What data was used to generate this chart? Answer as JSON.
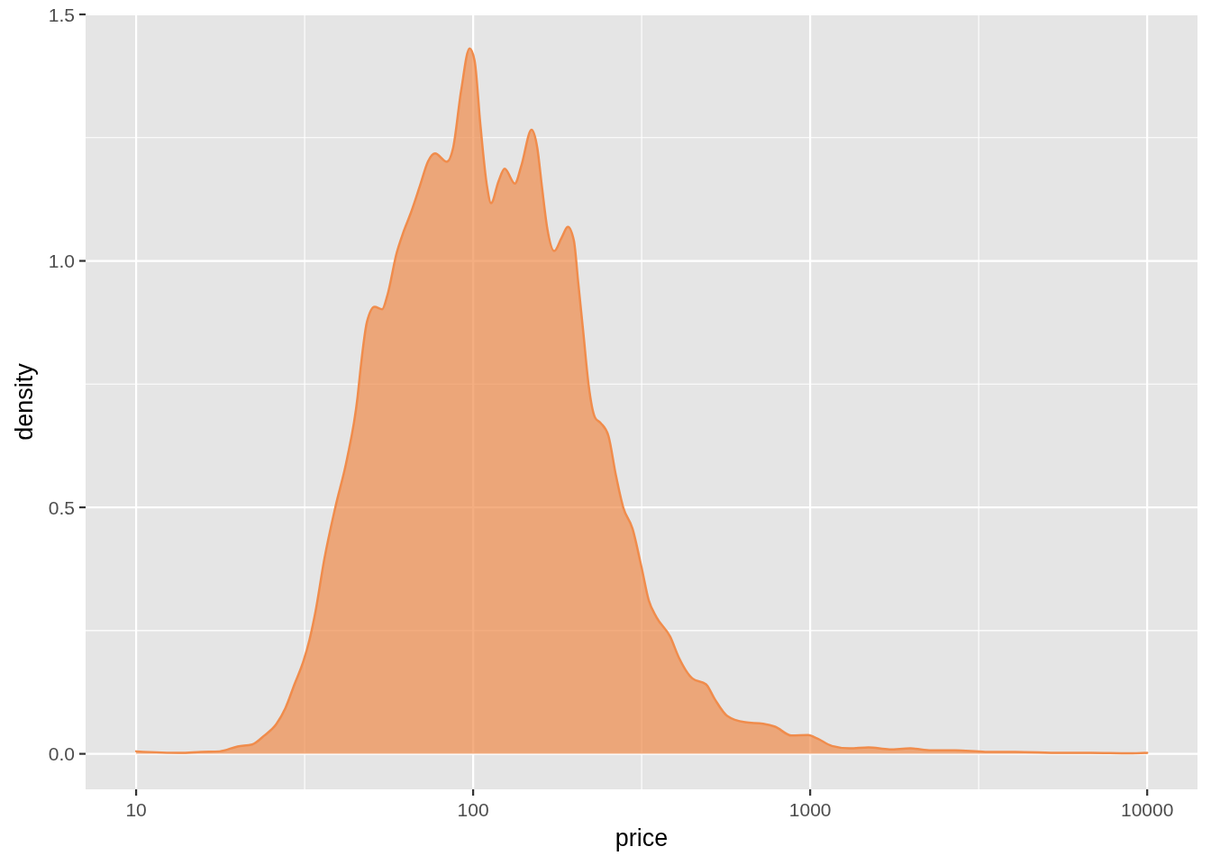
{
  "chart_data": {
    "type": "area",
    "xlabel": "price",
    "ylabel": "density",
    "log": "x",
    "grid": true,
    "xlim": [
      7.08,
      14100
    ],
    "ylim": [
      -0.072,
      1.5
    ],
    "xticks": [
      10,
      {
        "value": 31.62,
        "label": null
      },
      100,
      {
        "value": 316.2,
        "label": null
      },
      1000,
      {
        "value": 3162,
        "label": null
      },
      10000
    ],
    "yticks": [
      {
        "value": 0,
        "label": "0.0"
      },
      {
        "value": 0.25,
        "label": null
      },
      0.5,
      {
        "value": 0.75,
        "label": null
      },
      {
        "value": 1,
        "label": "1.0"
      },
      {
        "value": 1.25,
        "label": null
      },
      1.5
    ],
    "x": [
      10,
      13.5,
      15.6,
      17.7,
      20,
      22.1,
      24,
      26.1,
      27.7,
      29.5,
      31.4,
      32.7,
      34,
      36.2,
      39,
      42.2,
      45.4,
      46.3,
      48.4,
      51,
      53.7,
      55.7,
      59.3,
      61.7,
      65.7,
      69.8,
      73.5,
      77.1,
      83.5,
      87.2,
      92.1,
      97.6,
      101,
      105,
      110,
      113,
      119,
      124,
      133,
      139,
      149,
      155,
      160,
      166,
      174,
      183,
      191,
      199,
      205,
      212,
      220,
      230,
      239,
      252,
      265,
      279,
      297,
      316,
      332,
      350,
      384,
      408,
      447,
      491,
      522,
      567,
      641,
      725,
      787,
      881,
      986,
      1050,
      1160,
      1310,
      1490,
      1720,
      1980,
      2290,
      2700,
      3310,
      4060,
      5530,
      6790,
      8860,
      10000
    ],
    "series": [
      {
        "color": "#f08c4c",
        "values": [
          0.005,
          0.002,
          0.004,
          0.005,
          0.015,
          0.019,
          0.037,
          0.061,
          0.092,
          0.141,
          0.189,
          0.232,
          0.286,
          0.396,
          0.5,
          0.597,
          0.724,
          0.779,
          0.876,
          0.907,
          0.902,
          0.931,
          1.016,
          1.053,
          1.102,
          1.156,
          1.202,
          1.218,
          1.201,
          1.229,
          1.345,
          1.431,
          1.406,
          1.278,
          1.15,
          1.117,
          1.162,
          1.187,
          1.157,
          1.193,
          1.266,
          1.229,
          1.15,
          1.065,
          1.02,
          1.047,
          1.069,
          1.041,
          0.956,
          0.858,
          0.749,
          0.682,
          0.671,
          0.645,
          0.566,
          0.499,
          0.457,
          0.378,
          0.311,
          0.277,
          0.238,
          0.195,
          0.153,
          0.141,
          0.11,
          0.077,
          0.064,
          0.061,
          0.055,
          0.037,
          0.038,
          0.031,
          0.016,
          0.011,
          0.013,
          0.009,
          0.011,
          0.007,
          0.007,
          0.004,
          0.004,
          0.002,
          0.002,
          0.001,
          0.002
        ]
      }
    ]
  }
}
